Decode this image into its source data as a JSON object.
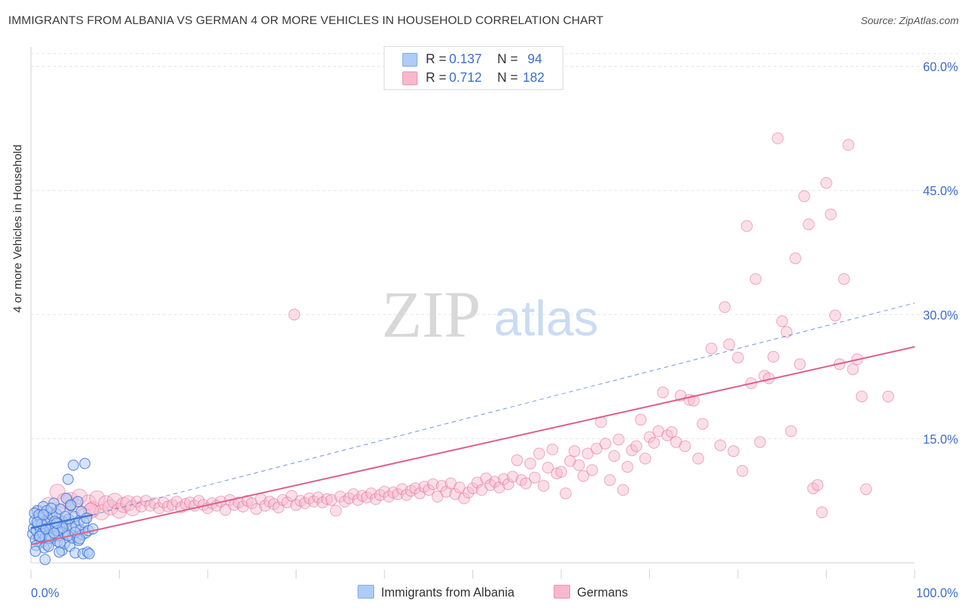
{
  "header": {
    "title": "IMMIGRANTS FROM ALBANIA VS GERMAN 4 OR MORE VEHICLES IN HOUSEHOLD CORRELATION CHART",
    "source": "Source: ZipAtlas.com"
  },
  "watermark": {
    "zip": "ZIP",
    "atlas": "atlas"
  },
  "legend_stats": [
    {
      "r_label": "R =",
      "r_value": "0.137",
      "n_label": "N =",
      "n_value": "94",
      "color": "#aeccf5"
    },
    {
      "r_label": "R =",
      "r_value": "0.712",
      "n_label": "N =",
      "n_value": "182",
      "color": "#f7b8cd"
    }
  ],
  "colors": {
    "blue": "#3d73d8",
    "blue_fill": "#aeccf5",
    "pink": "#e0608c",
    "pink_fill": "#f7b8cd",
    "value_text": "#3a6fd0"
  },
  "chart_data": {
    "type": "scatter",
    "title": "IMMIGRANTS FROM ALBANIA VS GERMAN 4 OR MORE VEHICLES IN HOUSEHOLD CORRELATION CHART",
    "xlabel": "",
    "ylabel": "4 or more Vehicles in Household",
    "xlim": [
      0,
      100
    ],
    "ylim": [
      0,
      65
    ],
    "x_tick_labels": [
      "0.0%",
      "100.0%"
    ],
    "y_ticks": [
      15,
      30,
      45,
      60
    ],
    "y_tick_labels": [
      "15.0%",
      "30.0%",
      "45.0%",
      "60.0%"
    ],
    "grid": true,
    "legend_position": "bottom",
    "series": [
      {
        "name": "Immigrants from Albania",
        "color": "#3d73d8",
        "trend": {
          "x": [
            0,
            7
          ],
          "y": [
            4.2,
            5.8
          ],
          "extended_to": [
            100,
            31.4
          ]
        },
        "points": [
          [
            0.2,
            3.5
          ],
          [
            0.3,
            4.2
          ],
          [
            0.4,
            5.1
          ],
          [
            0.5,
            2.8
          ],
          [
            0.6,
            3.9
          ],
          [
            0.7,
            6.3
          ],
          [
            0.8,
            4.6
          ],
          [
            0.9,
            3.1
          ],
          [
            1.0,
            5.5
          ],
          [
            1.1,
            4.0
          ],
          [
            1.2,
            2.5
          ],
          [
            1.3,
            3.6
          ],
          [
            1.4,
            6.8
          ],
          [
            1.5,
            4.4
          ],
          [
            1.6,
            3.0
          ],
          [
            1.7,
            5.2
          ],
          [
            1.8,
            2.2
          ],
          [
            1.9,
            4.9
          ],
          [
            2.0,
            3.4
          ],
          [
            2.1,
            6.0
          ],
          [
            2.2,
            4.1
          ],
          [
            2.3,
            2.9
          ],
          [
            2.4,
            5.7
          ],
          [
            2.5,
            3.8
          ],
          [
            2.6,
            7.2
          ],
          [
            2.7,
            4.3
          ],
          [
            2.8,
            3.2
          ],
          [
            2.9,
            5.9
          ],
          [
            3.0,
            2.6
          ],
          [
            3.1,
            4.7
          ],
          [
            3.2,
            3.3
          ],
          [
            3.3,
            6.5
          ],
          [
            3.4,
            4.0
          ],
          [
            3.5,
            1.5
          ],
          [
            3.6,
            5.0
          ],
          [
            3.7,
            3.7
          ],
          [
            3.8,
            2.3
          ],
          [
            3.9,
            4.8
          ],
          [
            4.0,
            7.8
          ],
          [
            4.1,
            3.5
          ],
          [
            4.2,
            10.1
          ],
          [
            4.3,
            5.3
          ],
          [
            4.4,
            2.0
          ],
          [
            4.5,
            6.9
          ],
          [
            4.6,
            4.2
          ],
          [
            4.7,
            3.0
          ],
          [
            4.8,
            11.8
          ],
          [
            4.9,
            5.6
          ],
          [
            5.0,
            1.2
          ],
          [
            5.1,
            4.4
          ],
          [
            5.2,
            3.1
          ],
          [
            5.3,
            7.4
          ],
          [
            5.4,
            2.7
          ],
          [
            5.5,
            5.1
          ],
          [
            5.6,
            4.0
          ],
          [
            5.7,
            6.2
          ],
          [
            5.8,
            3.4
          ],
          [
            5.9,
            1.1
          ],
          [
            6.0,
            4.9
          ],
          [
            6.1,
            12.0
          ],
          [
            6.2,
            3.6
          ],
          [
            6.3,
            5.4
          ],
          [
            6.4,
            1.3
          ],
          [
            6.5,
            3.9
          ],
          [
            6.6,
            1.1
          ],
          [
            0.4,
            6.0
          ],
          [
            0.6,
            2.1
          ],
          [
            0.9,
            5.8
          ],
          [
            1.2,
            4.7
          ],
          [
            1.5,
            1.8
          ],
          [
            1.8,
            6.3
          ],
          [
            2.1,
            3.0
          ],
          [
            2.4,
            4.5
          ],
          [
            2.7,
            5.0
          ],
          [
            3.0,
            3.9
          ],
          [
            3.3,
            2.4
          ],
          [
            3.6,
            4.2
          ],
          [
            3.9,
            5.6
          ],
          [
            4.2,
            3.3
          ],
          [
            4.5,
            7.0
          ],
          [
            0.7,
            4.9
          ],
          [
            1.0,
            3.2
          ],
          [
            1.4,
            5.8
          ],
          [
            1.7,
            4.1
          ],
          [
            2.0,
            2.0
          ],
          [
            2.3,
            6.6
          ],
          [
            2.6,
            3.6
          ],
          [
            2.9,
            4.8
          ],
          [
            3.2,
            1.3
          ],
          [
            1.6,
            0.4
          ],
          [
            5.0,
            3.7
          ],
          [
            5.5,
            2.9
          ],
          [
            0.5,
            1.4
          ],
          [
            7.0,
            4.1
          ]
        ]
      },
      {
        "name": "Germans",
        "color": "#e0608c",
        "trend": {
          "x": [
            0,
            100
          ],
          "y": [
            2.2,
            26.1
          ]
        },
        "points": [
          [
            1.0,
            6.0
          ],
          [
            1.5,
            4.8
          ],
          [
            2.0,
            7.0
          ],
          [
            2.5,
            5.5
          ],
          [
            3.0,
            8.6
          ],
          [
            3.5,
            6.2
          ],
          [
            4.0,
            4.9
          ],
          [
            4.5,
            7.6
          ],
          [
            5.0,
            6.9
          ],
          [
            5.5,
            8.0
          ],
          [
            6.0,
            5.7
          ],
          [
            6.5,
            7.3
          ],
          [
            7.0,
            6.5
          ],
          [
            7.5,
            7.8
          ],
          [
            8.0,
            6.1
          ],
          [
            8.5,
            7.2
          ],
          [
            9.0,
            6.7
          ],
          [
            9.5,
            7.5
          ],
          [
            10.0,
            6.3
          ],
          [
            10.5,
            7.0
          ],
          [
            11.0,
            7.2
          ],
          [
            11.5,
            6.6
          ],
          [
            12.0,
            7.4
          ],
          [
            12.5,
            6.8
          ],
          [
            13.0,
            7.5
          ],
          [
            13.5,
            6.9
          ],
          [
            14.0,
            7.2
          ],
          [
            14.5,
            6.6
          ],
          [
            15.0,
            7.3
          ],
          [
            15.5,
            6.8
          ],
          [
            16.0,
            7.0
          ],
          [
            16.5,
            7.4
          ],
          [
            17.0,
            6.7
          ],
          [
            17.5,
            7.1
          ],
          [
            18.0,
            7.3
          ],
          [
            18.5,
            6.9
          ],
          [
            19.0,
            7.5
          ],
          [
            19.5,
            7.0
          ],
          [
            20.0,
            6.6
          ],
          [
            20.5,
            7.2
          ],
          [
            21.0,
            6.9
          ],
          [
            21.5,
            7.4
          ],
          [
            22.0,
            6.4
          ],
          [
            22.5,
            7.6
          ],
          [
            23.0,
            7.0
          ],
          [
            23.5,
            7.3
          ],
          [
            24.0,
            6.8
          ],
          [
            24.5,
            7.5
          ],
          [
            25.0,
            7.2
          ],
          [
            25.5,
            6.5
          ],
          [
            26.0,
            7.7
          ],
          [
            26.5,
            6.9
          ],
          [
            27.0,
            7.4
          ],
          [
            27.5,
            7.1
          ],
          [
            28.0,
            6.7
          ],
          [
            28.5,
            7.6
          ],
          [
            29.0,
            7.3
          ],
          [
            29.5,
            8.1
          ],
          [
            30.0,
            7.0
          ],
          [
            30.5,
            7.5
          ],
          [
            31.0,
            7.2
          ],
          [
            31.5,
            7.8
          ],
          [
            32.0,
            7.4
          ],
          [
            32.5,
            7.9
          ],
          [
            33.0,
            7.3
          ],
          [
            33.5,
            7.7
          ],
          [
            34.0,
            7.6
          ],
          [
            34.5,
            6.3
          ],
          [
            35.0,
            8.0
          ],
          [
            35.5,
            7.4
          ],
          [
            36.0,
            7.8
          ],
          [
            36.5,
            8.3
          ],
          [
            37.0,
            7.6
          ],
          [
            37.5,
            8.1
          ],
          [
            38.0,
            7.9
          ],
          [
            38.5,
            8.4
          ],
          [
            39.0,
            7.7
          ],
          [
            39.5,
            8.2
          ],
          [
            40.0,
            8.6
          ],
          [
            40.5,
            8.0
          ],
          [
            41.0,
            8.5
          ],
          [
            41.5,
            8.3
          ],
          [
            42.0,
            8.9
          ],
          [
            42.5,
            8.2
          ],
          [
            43.0,
            8.7
          ],
          [
            43.5,
            9.0
          ],
          [
            44.0,
            8.4
          ],
          [
            44.5,
            9.2
          ],
          [
            45.0,
            8.8
          ],
          [
            45.5,
            9.5
          ],
          [
            46.0,
            8.0
          ],
          [
            46.5,
            9.3
          ],
          [
            47.0,
            8.6
          ],
          [
            47.5,
            9.6
          ],
          [
            48.0,
            8.3
          ],
          [
            48.5,
            9.1
          ],
          [
            49.0,
            7.8
          ],
          [
            49.5,
            8.5
          ],
          [
            50.0,
            9.0
          ],
          [
            50.5,
            9.7
          ],
          [
            51.0,
            8.8
          ],
          [
            51.5,
            10.2
          ],
          [
            52.0,
            9.4
          ],
          [
            52.5,
            9.8
          ],
          [
            53.0,
            9.1
          ],
          [
            53.5,
            10.1
          ],
          [
            54.0,
            9.5
          ],
          [
            54.5,
            10.4
          ],
          [
            55.0,
            12.4
          ],
          [
            55.5,
            10.0
          ],
          [
            56.0,
            9.6
          ],
          [
            56.5,
            12.0
          ],
          [
            57.0,
            10.3
          ],
          [
            57.5,
            13.2
          ],
          [
            58.0,
            9.3
          ],
          [
            58.5,
            11.5
          ],
          [
            59.0,
            13.7
          ],
          [
            59.5,
            10.8
          ],
          [
            60.0,
            11.0
          ],
          [
            60.5,
            8.4
          ],
          [
            61.0,
            12.3
          ],
          [
            61.5,
            13.5
          ],
          [
            62.0,
            11.8
          ],
          [
            62.5,
            10.5
          ],
          [
            63.0,
            13.2
          ],
          [
            63.5,
            11.2
          ],
          [
            64.0,
            13.8
          ],
          [
            64.5,
            17.0
          ],
          [
            65.0,
            14.4
          ],
          [
            65.5,
            10.0
          ],
          [
            66.0,
            12.9
          ],
          [
            66.5,
            14.9
          ],
          [
            67.0,
            8.8
          ],
          [
            67.5,
            11.6
          ],
          [
            68.0,
            13.6
          ],
          [
            68.5,
            14.1
          ],
          [
            69.0,
            17.3
          ],
          [
            69.5,
            12.6
          ],
          [
            70.0,
            15.2
          ],
          [
            70.5,
            14.5
          ],
          [
            71.0,
            15.9
          ],
          [
            71.5,
            20.6
          ],
          [
            72.0,
            15.4
          ],
          [
            72.5,
            15.8
          ],
          [
            73.0,
            14.6
          ],
          [
            73.5,
            20.2
          ],
          [
            74.0,
            14.1
          ],
          [
            74.5,
            19.7
          ],
          [
            75.0,
            19.6
          ],
          [
            75.5,
            12.6
          ],
          [
            76.0,
            16.8
          ],
          [
            77.0,
            25.9
          ],
          [
            78.0,
            14.2
          ],
          [
            78.5,
            30.9
          ],
          [
            79.0,
            26.4
          ],
          [
            79.5,
            13.5
          ],
          [
            80.0,
            24.8
          ],
          [
            80.5,
            11.1
          ],
          [
            81.0,
            40.7
          ],
          [
            81.5,
            21.7
          ],
          [
            82.0,
            34.3
          ],
          [
            82.5,
            14.6
          ],
          [
            83.0,
            22.6
          ],
          [
            83.5,
            22.3
          ],
          [
            84.0,
            24.9
          ],
          [
            84.5,
            51.3
          ],
          [
            85.0,
            29.2
          ],
          [
            85.5,
            27.9
          ],
          [
            86.0,
            15.9
          ],
          [
            86.5,
            36.8
          ],
          [
            87.0,
            24.0
          ],
          [
            87.5,
            44.3
          ],
          [
            88.0,
            40.9
          ],
          [
            88.5,
            9.0
          ],
          [
            89.0,
            9.4
          ],
          [
            89.5,
            6.1
          ],
          [
            90.0,
            45.9
          ],
          [
            90.5,
            42.1
          ],
          [
            91.0,
            29.9
          ],
          [
            91.5,
            24.0
          ],
          [
            92.0,
            34.3
          ],
          [
            92.5,
            50.5
          ],
          [
            93.0,
            23.4
          ],
          [
            93.5,
            24.6
          ],
          [
            94.0,
            20.1
          ],
          [
            94.5,
            8.9
          ],
          [
            97.0,
            20.1
          ],
          [
            29.8,
            30.0
          ],
          [
            3.8,
            7.5
          ],
          [
            6.8,
            6.3
          ]
        ]
      }
    ]
  },
  "bottom_legend": [
    {
      "label": "Immigrants from Albania",
      "color": "#aeccf5"
    },
    {
      "label": "Germans",
      "color": "#f7b8cd"
    }
  ]
}
